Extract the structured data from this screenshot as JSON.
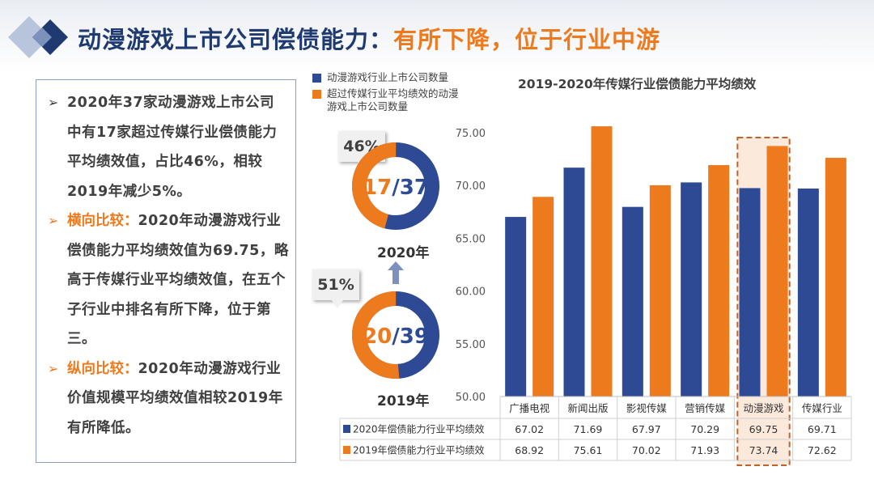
{
  "title": {
    "main": "动漫游戏上市公司偿债能力：",
    "accent": "有所下降，位于行业中游"
  },
  "bullets": [
    {
      "label": "",
      "text": "2020年37家动漫游戏上市公司中有17家超过传媒行业偿债能力平均绩效值，占比46%，相较2019年减少5%。"
    },
    {
      "label": "横向比较：",
      "text": "2020年动漫游戏行业偿债能力平均绩效值为69.75，略高于传媒行业平均绩效值，在五个子行业中排名有所下降，位于第三。"
    },
    {
      "label": "纵向比较：",
      "text": "2020年动漫游戏行业价值规模平均绩效值相较2019年有所降低。"
    }
  ],
  "donut_legend": [
    {
      "label": "动漫游戏行业上市公司数量",
      "color": "#2e4a94"
    },
    {
      "label": "超过传媒行业平均绩效的动漫游戏上市公司数量",
      "color": "#ee7a1e"
    }
  ],
  "donuts": [
    {
      "year": "2020年",
      "percent_label": "46%",
      "part": 17,
      "total": 37,
      "part_text": "17",
      "slash": "/",
      "total_text": "37"
    },
    {
      "year": "2019年",
      "percent_label": "51%",
      "part": 20,
      "total": 39,
      "part_text": "20",
      "slash": "/",
      "total_text": "39"
    }
  ],
  "colors": {
    "series_2020": "#2e4a94",
    "series_2019": "#ee7a1e",
    "highlight_fill": "#fbe9dc",
    "highlight_border": "#c0622a"
  },
  "chart_data": {
    "type": "bar",
    "title": "2019-2020年传媒行业偿债能力平均绩效",
    "categories": [
      "广播电视",
      "新闻出版",
      "影视传媒",
      "营销传媒",
      "动漫游戏",
      "传媒行业"
    ],
    "series": [
      {
        "name": "2020年偿债能力行业平均绩效",
        "values": [
          67.02,
          71.69,
          67.97,
          70.29,
          69.75,
          69.71
        ],
        "display": [
          "67.02",
          "71.69",
          "67.97",
          "70.29",
          "69.75",
          "69.71"
        ],
        "color": "#2e4a94"
      },
      {
        "name": "2019年偿债能力行业平均绩效",
        "values": [
          68.92,
          75.61,
          70.02,
          71.93,
          73.74,
          72.62
        ],
        "display": [
          "68.92",
          "75.61",
          "70.02",
          "71.93",
          "73.74",
          "72.62"
        ],
        "color": "#ee7a1e"
      }
    ],
    "ylim": [
      50,
      75
    ],
    "yticks": [
      50,
      55,
      60,
      65,
      70,
      75
    ],
    "ytick_labels": [
      "50.00",
      "55.00",
      "60.00",
      "65.00",
      "70.00",
      "75.00"
    ],
    "highlight_category": "动漫游戏",
    "grid": false,
    "data_table": true
  }
}
